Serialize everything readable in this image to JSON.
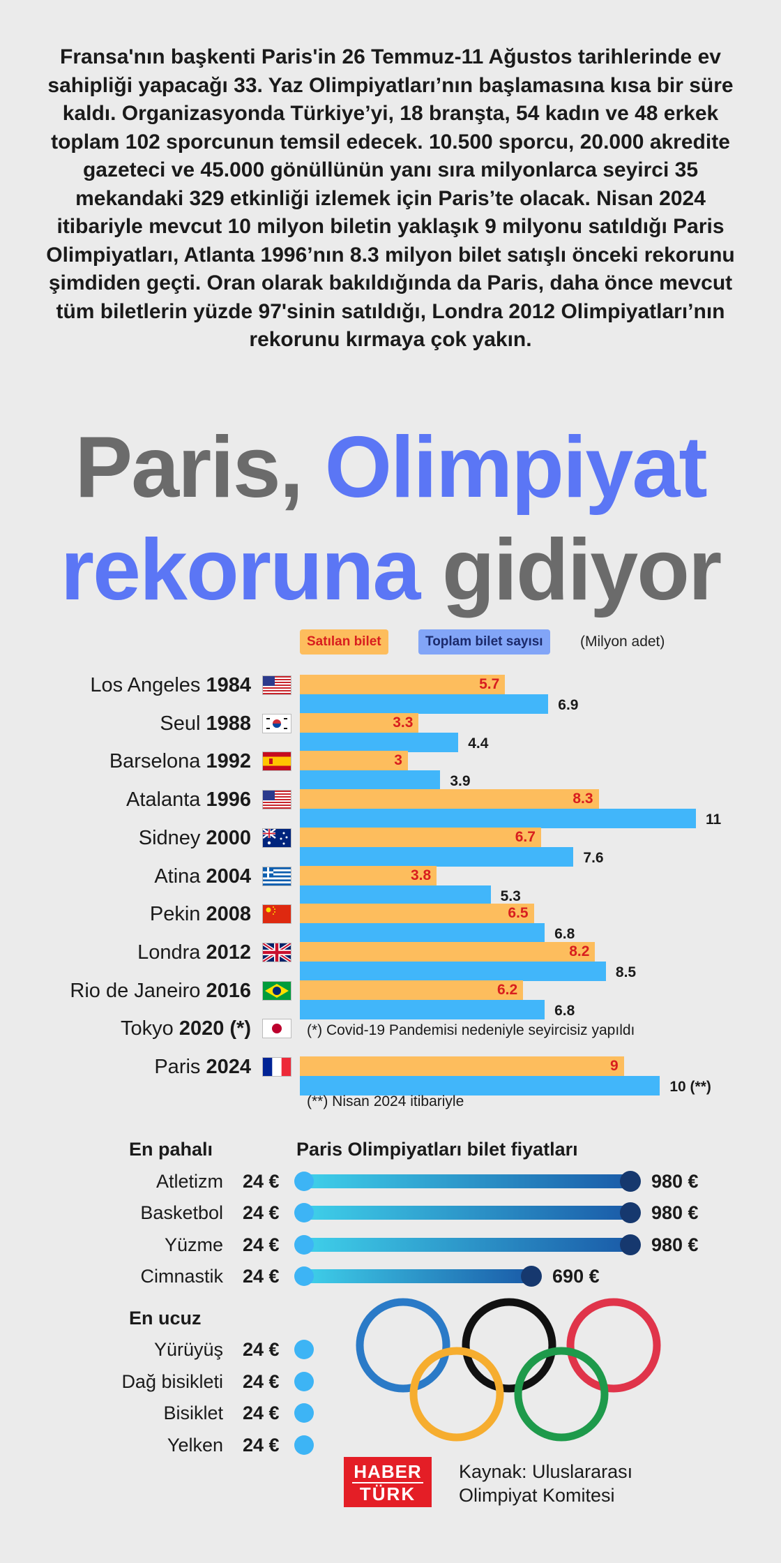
{
  "intro": "Fransa'nın başkenti Paris'in 26 Temmuz-11 Ağustos tarihlerinde ev sahipliği yapacağı 33. Yaz Olimpiyatları’nın başlamasına kısa bir süre kaldı.  Organizasyonda Türkiye’yi, 18 branşta, 54 kadın ve 48 erkek toplam 102 sporcunun temsil edecek. 10.500 sporcu, 20.000 akredite gazeteci ve 45.000 gönüllünün yanı sıra milyonlarca seyirci 35 mekandaki 329 etkinliği izlemek için Paris’te olacak. Nisan 2024 itibariyle mevcut 10 milyon biletin yaklaşık 9 milyonu satıldığı Paris Olimpiyatları, Atlanta 1996’nın 8.3 milyon bilet satışlı önceki rekorunu şimdiden geçti. Oran olarak bakıldığında da Paris, daha önce mevcut tüm biletlerin yüzde 97'sinin satıldığı, Londra 2012 Olimpiyatları’nın rekorunu kırmaya çok yakın.",
  "headline": {
    "part1": "Paris, ",
    "part2": "Olimpiyat",
    "part3": "rekoruna",
    "part4": " gidiyor"
  },
  "colors": {
    "sold": "#fdbd5d",
    "total": "#41b6fa",
    "accent_blue": "#5b76f5",
    "headline_gray": "#6b6b6b",
    "sold_label": "#d81e1e"
  },
  "chart_data": [
    {
      "type": "bar",
      "orientation": "horizontal",
      "legend": {
        "sold": "Satılan bilet",
        "total": "Toplam bilet sayısı",
        "unit": "(Milyon adet)",
        "placement": "top"
      },
      "xlim": [
        0,
        11
      ],
      "rows": [
        {
          "city": "Los Angeles ",
          "year": "1984",
          "flag": "us",
          "sold": 5.7,
          "total": 6.9,
          "sold_label": "5.7",
          "total_label": "6.9"
        },
        {
          "city": "Seul ",
          "year": "1988",
          "flag": "kr",
          "sold": 3.3,
          "total": 4.4,
          "sold_label": "3.3",
          "total_label": "4.4"
        },
        {
          "city": "Barselona ",
          "year": "1992",
          "flag": "es",
          "sold": 3,
          "total": 3.9,
          "sold_label": "3",
          "total_label": "3.9"
        },
        {
          "city": "Atalanta ",
          "year": "1996",
          "flag": "us",
          "sold": 8.3,
          "total": 11,
          "sold_label": "8.3",
          "total_label": "11"
        },
        {
          "city": "Sidney ",
          "year": "2000",
          "flag": "au",
          "sold": 6.7,
          "total": 7.6,
          "sold_label": "6.7",
          "total_label": "7.6"
        },
        {
          "city": "Atina ",
          "year": "2004",
          "flag": "gr",
          "sold": 3.8,
          "total": 5.3,
          "sold_label": "3.8",
          "total_label": "5.3"
        },
        {
          "city": "Pekin ",
          "year": "2008",
          "flag": "cn",
          "sold": 6.5,
          "total": 6.8,
          "sold_label": "6.5",
          "total_label": "6.8"
        },
        {
          "city": "Londra ",
          "year": "2012",
          "flag": "gb",
          "sold": 8.2,
          "total": 8.5,
          "sold_label": "8.2",
          "total_label": "8.5"
        },
        {
          "city": "Rio de Janeiro ",
          "year": "2016",
          "flag": "br",
          "sold": 6.2,
          "total": 6.8,
          "sold_label": "6.2",
          "total_label": "6.8"
        },
        {
          "city": "Tokyo ",
          "year": "2020 (*)",
          "flag": "jp",
          "sold": null,
          "total": null,
          "note": "(*) Covid-19 Pandemisi nedeniyle seyircisiz yapıldı"
        },
        {
          "city": "Paris ",
          "year": "2024",
          "flag": "fr",
          "sold": 9,
          "total": 10,
          "sold_label": "9",
          "total_label": "10 (**)"
        }
      ],
      "footnote": "(**) Nisan 2024 itibariyle"
    },
    {
      "type": "range",
      "title": "Paris Olimpiyatları bilet fiyatları",
      "xlim": [
        0,
        1000
      ],
      "groups": [
        {
          "label": "En pahalı",
          "items": [
            {
              "sport": "Atletizm",
              "min": 24,
              "max": 980,
              "min_label": "24 €",
              "max_label": "980 €"
            },
            {
              "sport": "Basketbol",
              "min": 24,
              "max": 980,
              "min_label": "24 €",
              "max_label": "980 €"
            },
            {
              "sport": "Yüzme",
              "min": 24,
              "max": 980,
              "min_label": "24 €",
              "max_label": "980 €"
            },
            {
              "sport": "Cimnastik",
              "min": 24,
              "max": 690,
              "min_label": "24 €",
              "max_label": "690 €"
            }
          ]
        },
        {
          "label": "En ucuz",
          "items": [
            {
              "sport": "Yürüyüş",
              "min": 24,
              "max": 24,
              "min_label": "24 €"
            },
            {
              "sport": "Dağ bisikleti",
              "min": 24,
              "max": 24,
              "min_label": "24 €"
            },
            {
              "sport": "Bisiklet",
              "min": 24,
              "max": 24,
              "min_label": "24 €"
            },
            {
              "sport": "Yelken",
              "min": 24,
              "max": 24,
              "min_label": "24 €"
            }
          ]
        }
      ]
    }
  ],
  "source": {
    "line1": "Kaynak: Uluslararası",
    "line2": "Olimpiyat Komitesi"
  },
  "logo": {
    "line1": "HABER",
    "line2": "TÜRK"
  },
  "rings": [
    "#2a7ac7",
    "#111111",
    "#e0344a",
    "#f6ad2f",
    "#1e9a4b"
  ]
}
